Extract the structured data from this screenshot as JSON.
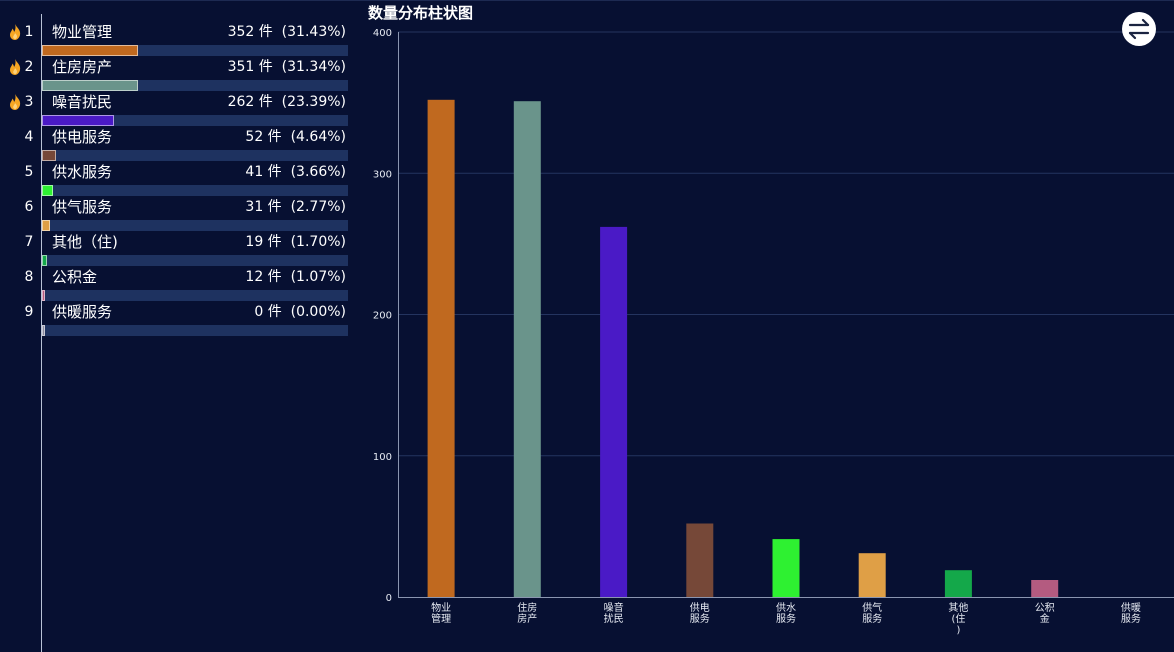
{
  "colors": {
    "background": "#071032",
    "track": "#1e3260",
    "gridline": "#24345f",
    "flame": "#f5a623"
  },
  "ranking": {
    "items": [
      {
        "rank": "1",
        "name": "物业管理",
        "value_text": "352 件  (31.43%)",
        "value": 352,
        "color": "#c0691f",
        "hot": true
      },
      {
        "rank": "2",
        "name": "住房房产",
        "value_text": "351 件  (31.34%)",
        "value": 351,
        "color": "#6a948b",
        "hot": true
      },
      {
        "rank": "3",
        "name": "噪音扰民",
        "value_text": "262 件  (23.39%)",
        "value": 262,
        "color": "#4a1ac6",
        "hot": true
      },
      {
        "rank": "4",
        "name": "供电服务",
        "value_text": "52 件  (4.64%)",
        "value": 52,
        "color": "#764838",
        "hot": false
      },
      {
        "rank": "5",
        "name": "供水服务",
        "value_text": "41 件  (3.66%)",
        "value": 41,
        "color": "#2ef131",
        "hot": false
      },
      {
        "rank": "6",
        "name": "供气服务",
        "value_text": "31 件  (2.77%)",
        "value": 31,
        "color": "#df9f46",
        "hot": false
      },
      {
        "rank": "7",
        "name": "其他（住)",
        "value_text": "19 件  (1.70%)",
        "value": 19,
        "color": "#14a84a",
        "hot": false
      },
      {
        "rank": "8",
        "name": "公积金",
        "value_text": "12 件  (1.07%)",
        "value": 12,
        "color": "#b45b80",
        "hot": false
      },
      {
        "rank": "9",
        "name": "供暖服务",
        "value_text": "0 件  (0.00%)",
        "value": 0,
        "color": "#8a8aa0",
        "hot": false
      }
    ],
    "max_value": 1120
  },
  "switch_button": {
    "icon": "swap-arrows-icon"
  },
  "chart_data": {
    "type": "bar",
    "title": "数量分布柱状图",
    "categories": [
      "物业管理",
      "住房房产",
      "噪音扰民",
      "供电服务",
      "供水服务",
      "供气服务",
      "其他（住)",
      "公积金",
      "供暖服务"
    ],
    "category_labels": [
      [
        "物业",
        "管理"
      ],
      [
        "住房",
        "房产"
      ],
      [
        "噪音",
        "扰民"
      ],
      [
        "供电",
        "服务"
      ],
      [
        "供水",
        "服务"
      ],
      [
        "供气",
        "服务"
      ],
      [
        "其他",
        "(住",
        ")"
      ],
      [
        "公积",
        "金"
      ],
      [
        "供暖",
        "服务"
      ]
    ],
    "values": [
      352,
      351,
      262,
      52,
      41,
      31,
      19,
      12,
      0
    ],
    "colors": [
      "#c0691f",
      "#6a948b",
      "#4a1ac6",
      "#764838",
      "#2ef131",
      "#df9f46",
      "#14a84a",
      "#b45b80",
      "#8a8aa0"
    ],
    "ylim": [
      0,
      400
    ],
    "yticks": [
      "0",
      "100",
      "200",
      "300",
      "400"
    ],
    "grid": true,
    "xlabel": "",
    "ylabel": ""
  }
}
